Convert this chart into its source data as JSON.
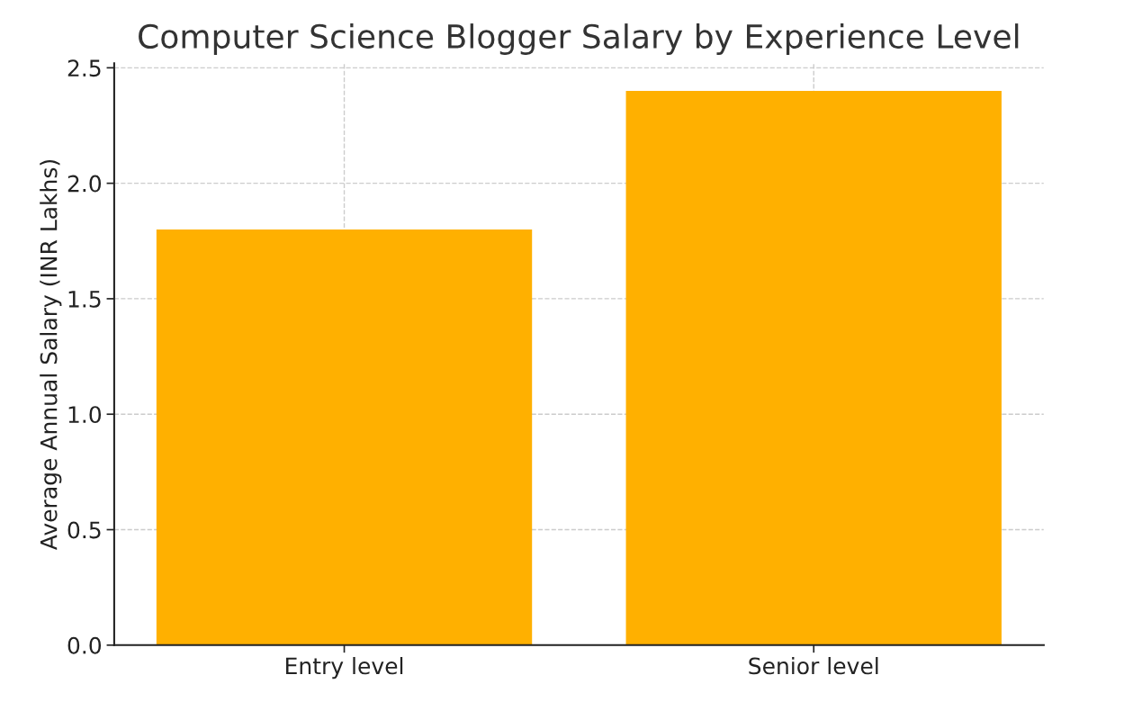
{
  "chart_data": {
    "type": "bar",
    "title": "Computer Science Blogger Salary by Experience Level",
    "ylabel": "Average Annual Salary (INR Lakhs)",
    "categories": [
      "Entry level",
      "Senior level"
    ],
    "values": [
      1.8,
      2.4
    ],
    "color": "#ffb000",
    "ylim": [
      0,
      2.52
    ],
    "yticks": [
      {
        "value": 0,
        "label": "0.0"
      },
      0.5,
      {
        "value": 1,
        "label": "1.0"
      },
      1.5,
      {
        "value": 2,
        "label": "2.0"
      },
      2.5
    ],
    "grid": true
  }
}
